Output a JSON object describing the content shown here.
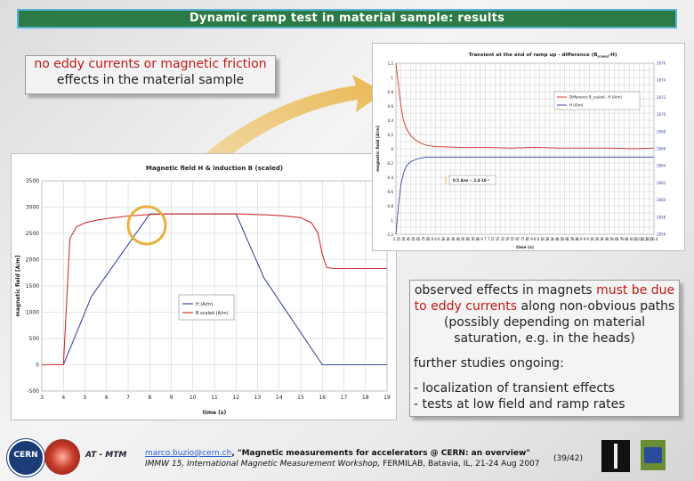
{
  "slide": {
    "title": "Dynamic ramp test in material sample: results",
    "callout_left": {
      "line1": "no eddy currents or magnetic friction",
      "line2": "effects in the material sample"
    },
    "callout_right": {
      "p1_a": "observed effects in magnets ",
      "p1_red1": "must be due",
      "p1_red2": "to eddy currents",
      "p1_b": " along non-obvious paths",
      "p1_c": "(possibly depending on material",
      "p1_d": "saturation, e.g. in the heads)",
      "p2": "further studies ongoing:",
      "bullet1": "- localization of transient effects",
      "bullet2": "- tests at low field and ramp rates"
    },
    "footer": {
      "email": "marco.buzio@cern.ch",
      "title_part": ", \"Magnetic measurements for accelerators @ CERN: an overview\"",
      "event": "IMMW 15, International Magnetic Measurement Workshop,",
      "location": " FERMILAB, Batavia, IL, 21-24 Aug 2007",
      "page": "(39/42)",
      "logo_label": "AT - MTM",
      "cern_label": "CERN"
    }
  },
  "chart_data": [
    {
      "type": "line",
      "title": "Magnetic field H & induction B (scaled)",
      "xlabel": "time (s)",
      "ylabel": "magnetic field [A/m]",
      "xlim": [
        3,
        19
      ],
      "ylim": [
        -500,
        3500
      ],
      "xticks": [
        3,
        4,
        5,
        6,
        7,
        8,
        9,
        10,
        11,
        12,
        13,
        14,
        15,
        16,
        17,
        18,
        19
      ],
      "yticks": [
        -500,
        0,
        500,
        1000,
        1500,
        2000,
        2500,
        3000,
        3500
      ],
      "grid": true,
      "legend_position": "right",
      "series": [
        {
          "name": "H (A/m)",
          "color": "#3a4aa0",
          "x": [
            3,
            4,
            5.3,
            8,
            12,
            13.3,
            16,
            19
          ],
          "y": [
            0,
            0,
            1300,
            2870,
            2870,
            1650,
            0,
            0
          ]
        },
        {
          "name": "B scaled (A/m)",
          "color": "#d03030",
          "x": [
            3,
            4,
            4.1,
            4.3,
            4.6,
            5,
            5.5,
            6,
            7,
            8,
            9,
            12,
            13,
            14,
            15,
            15.5,
            15.8,
            16,
            16.2,
            16.5,
            19
          ],
          "y": [
            0,
            0,
            800,
            2400,
            2620,
            2700,
            2750,
            2780,
            2830,
            2860,
            2870,
            2870,
            2860,
            2840,
            2800,
            2700,
            2500,
            2100,
            1850,
            1830,
            1830
          ]
        }
      ]
    },
    {
      "type": "line",
      "title": "Transient at the end of ramp up - difference (B",
      "title_sub": "scaled",
      "title_end": "-H)",
      "xlabel": "time (s)",
      "ylabel": "magnetic field [A/m]",
      "xlim": [
        5.2,
        10.4
      ],
      "ylim": [
        -1.2,
        1.2
      ],
      "xticks": [
        5.2,
        5.3,
        5.4,
        5.5,
        5.6,
        5.7,
        5.8,
        5.9,
        6,
        6.1,
        6.2,
        6.3,
        6.4,
        6.5,
        6.6,
        6.7,
        6.8,
        6.9,
        7,
        7.1,
        7.2,
        7.3,
        7.4,
        7.5,
        7.6,
        7.7,
        7.8,
        7.9,
        8,
        8.1,
        8.2,
        8.3,
        8.4,
        8.5,
        8.6,
        8.7,
        8.8,
        8.9,
        9,
        9.1,
        9.2,
        9.3,
        9.4,
        9.5,
        9.6,
        9.7,
        9.8,
        9.9,
        10,
        10.1,
        10.2,
        10.3,
        10.4
      ],
      "yticks": [
        -1.2,
        -1.1,
        -1,
        -0.9,
        -0.8,
        -0.7,
        -0.6,
        -0.5,
        -0.4,
        -0.3,
        -0.2,
        -0.1,
        0,
        0.1,
        0.2,
        0.3,
        0.4,
        0.5,
        0.6,
        0.7,
        0.8,
        0.9,
        1,
        1.1,
        1.2
      ],
      "y2lim": [
        2856,
        2876
      ],
      "y2ticks": [
        2856,
        2858,
        2860,
        2862,
        2864,
        2866,
        2868,
        2870,
        2872,
        2874,
        2876
      ],
      "grid": true,
      "legend_position": "top-right",
      "annotation": "0.5 A/m ~ 2.4·10⁻⁴",
      "series": [
        {
          "name": "Difference B_scaled - H (A/m)",
          "color": "#d03030",
          "x": [
            5.2,
            5.25,
            5.3,
            5.35,
            5.4,
            5.5,
            5.6,
            5.7,
            5.8,
            6,
            6.5,
            7,
            7.5,
            8,
            8.5,
            9,
            9.5,
            10,
            10.4
          ],
          "y": [
            1.2,
            0.9,
            0.6,
            0.4,
            0.3,
            0.18,
            0.12,
            0.08,
            0.05,
            0.03,
            0.02,
            0.02,
            0.01,
            0.02,
            0.01,
            0.01,
            0.01,
            0.0,
            0.01
          ]
        },
        {
          "name": "H (A/m)",
          "color": "#3a4aa0",
          "x": [
            5.2,
            5.25,
            5.3,
            5.35,
            5.4,
            5.5,
            5.6,
            5.7,
            5.8,
            6,
            6.5,
            7,
            8,
            9,
            10,
            10.4
          ],
          "y": [
            -1.2,
            -0.8,
            -0.5,
            -0.35,
            -0.25,
            -0.18,
            -0.15,
            -0.13,
            -0.12,
            -0.12,
            -0.12,
            -0.12,
            -0.12,
            -0.12,
            -0.12,
            -0.12
          ]
        }
      ]
    }
  ]
}
